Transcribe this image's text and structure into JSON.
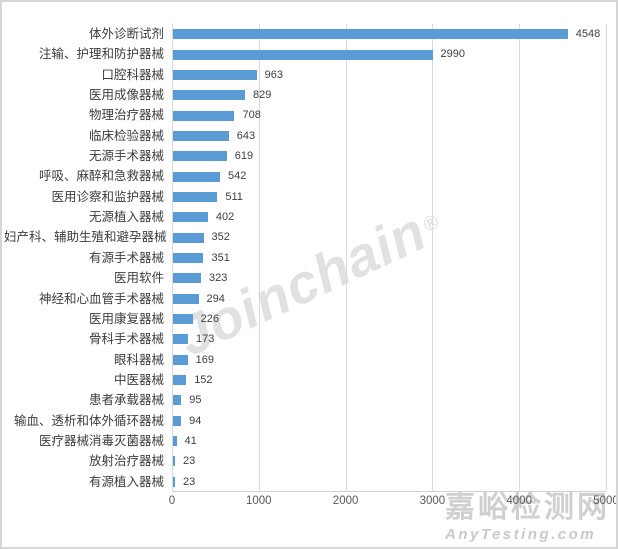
{
  "watermark_center": {
    "text": "Joinchain",
    "registered": "®"
  },
  "watermark_corner": {
    "line1": "嘉峪检测网",
    "line2": "AnyTesting.com"
  },
  "chart_data": {
    "type": "bar",
    "orientation": "horizontal",
    "title": "",
    "xlabel": "",
    "ylabel": "",
    "categories": [
      "体外诊断试剂",
      "注输、护理和防护器械",
      "口腔科器械",
      "医用成像器械",
      "物理治疗器械",
      "临床检验器械",
      "无源手术器械",
      "呼吸、麻醉和急救器械",
      "医用诊察和监护器械",
      "无源植入器械",
      "妇产科、辅助生殖和避孕器械",
      "有源手术器械",
      "医用软件",
      "神经和心血管手术器械",
      "医用康复器械",
      "骨科手术器械",
      "眼科器械",
      "中医器械",
      "患者承载器械",
      "输血、透析和体外循环器械",
      "医疗器械消毒灭菌器械",
      "放射治疗器械",
      "有源植入器械"
    ],
    "values": [
      4548,
      2990,
      963,
      829,
      708,
      643,
      619,
      542,
      511,
      402,
      352,
      351,
      323,
      294,
      226,
      173,
      169,
      152,
      95,
      94,
      41,
      23,
      23
    ],
    "value_labels_shown": true,
    "xlim": [
      0,
      5000
    ],
    "x_ticks": [
      0,
      1000,
      2000,
      3000,
      4000,
      5000
    ],
    "grid": true,
    "legend": false,
    "bar_color": "#5B9BD5",
    "gridline_color": "#D9D9D9"
  }
}
